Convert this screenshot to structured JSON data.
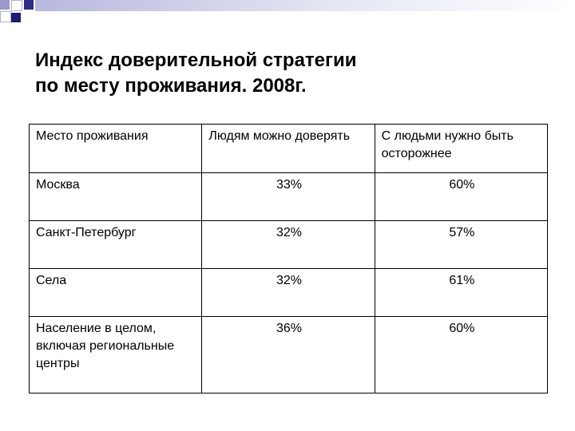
{
  "title": {
    "line1": "Индекс доверительной стратегии",
    "line2": "по месту проживания. 2008г."
  },
  "table": {
    "headers": [
      "Место проживания",
      "Людям можно доверять",
      "С людьми нужно быть осторожнее"
    ],
    "rows": [
      [
        "Москва",
        "33%",
        "60%"
      ],
      [
        "Санкт-Петербург",
        "32%",
        "57%"
      ],
      [
        "Села",
        "32%",
        "61%"
      ],
      [
        "Население в целом, включая региональные центры",
        "36%",
        "60%"
      ]
    ]
  },
  "colors": {
    "accent_light": "#9999cc",
    "accent_dark": "#1c1c70",
    "text": "#000000"
  }
}
